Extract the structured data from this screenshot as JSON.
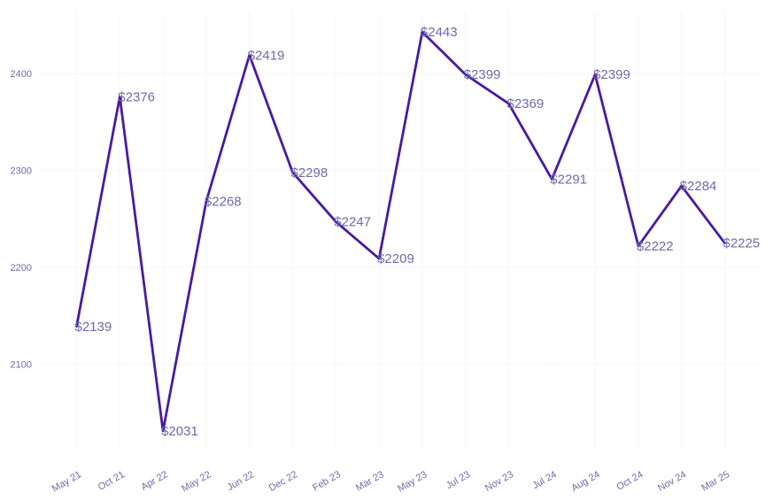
{
  "chart_data": {
    "type": "line",
    "title": "",
    "xlabel": "",
    "ylabel": "",
    "categories": [
      "May 21",
      "Oct 21",
      "Apr 22",
      "May 22",
      "Jun 22",
      "Dec 22",
      "Feb 23",
      "Mar 23",
      "May 23",
      "Jul 23",
      "Nov 23",
      "Jul 24",
      "Aug 24",
      "Oct 24",
      "Nov 24",
      "Mar 25"
    ],
    "series": [
      {
        "values": [
          2139,
          2376,
          2031,
          2268,
          2419,
          2298,
          2247,
          2209,
          2443,
          2399,
          2369,
          2291,
          2399,
          2222,
          2284,
          2225
        ]
      }
    ],
    "data_labels": [
      "$2139",
      "$2376",
      "$2031",
      "$2268",
      "$2419",
      "$2298",
      "$2247",
      "$2209",
      "$2443",
      "$2399",
      "$2369",
      "$2291",
      "$2399",
      "$2222",
      "$2284",
      "$2225"
    ],
    "yticks": [
      2100,
      2200,
      2300,
      2400
    ],
    "ylim": [
      2010,
      2465
    ],
    "grid": true,
    "line_color": "#4a1aa0",
    "text_color": "#6f6aa8"
  }
}
